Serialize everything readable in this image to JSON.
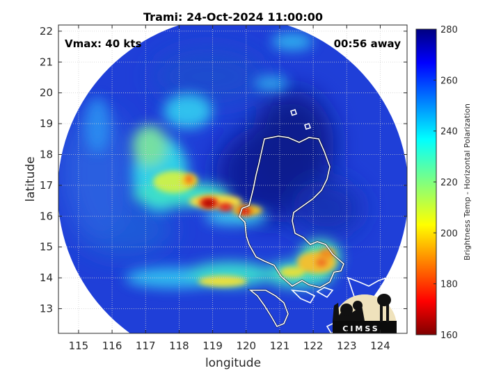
{
  "chart_data": {
    "type": "heatmap",
    "title": "Trami: 24-Oct-2024 11:00:00",
    "xlabel": "longitude",
    "ylabel": "latitude",
    "xlim": [
      114.4,
      124.8
    ],
    "ylim": [
      12.2,
      22.2
    ],
    "xticks": [
      115,
      116,
      117,
      118,
      119,
      120,
      121,
      122,
      123,
      124
    ],
    "yticks": [
      13,
      14,
      15,
      16,
      17,
      18,
      19,
      20,
      21,
      22
    ],
    "grid": true,
    "colorbar": {
      "label": "Brightness Temp - Horizontal Polarization",
      "min": 160,
      "max": 280,
      "ticks": [
        160,
        180,
        200,
        220,
        240,
        260,
        280
      ],
      "colormap": "jet"
    },
    "annotations": {
      "vmax": "Vmax: 40 kts",
      "time_away": "00:56 away"
    },
    "features": [
      {
        "lon": 119.1,
        "lat": 16.4,
        "value": 168
      },
      {
        "lon": 119.7,
        "lat": 16.2,
        "value": 170
      },
      {
        "lon": 120.1,
        "lat": 16.05,
        "value": 172
      },
      {
        "lon": 118.3,
        "lat": 16.9,
        "value": 192
      },
      {
        "lon": 122.5,
        "lat": 14.4,
        "value": 188
      },
      {
        "lon": 122.3,
        "lat": 14.7,
        "value": 195
      },
      {
        "lon": 119.5,
        "lat": 14.0,
        "value": 200
      },
      {
        "lon": 117.6,
        "lat": 17.5,
        "value": 218
      },
      {
        "lon": 117.2,
        "lat": 18.6,
        "value": 228
      },
      {
        "lon": 121.2,
        "lat": 14.1,
        "value": 215
      },
      {
        "lon": 118.0,
        "lat": 14.3,
        "value": 226
      },
      {
        "lon": 120.7,
        "lat": 15.6,
        "value": 270
      },
      {
        "lon": 121.3,
        "lat": 17.6,
        "value": 276
      }
    ],
    "logo_text": "CIMSS"
  }
}
